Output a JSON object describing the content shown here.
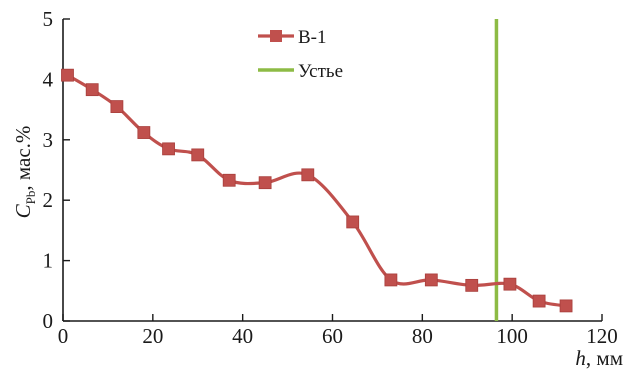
{
  "chart_data": {
    "type": "line",
    "x": [
      1,
      6.5,
      12,
      18,
      23.5,
      30,
      37,
      45,
      54.5,
      64.5,
      73,
      82,
      91,
      99.5,
      106,
      112
    ],
    "series": [
      {
        "name": "В-1",
        "values": [
          4.07,
          3.83,
          3.55,
          3.12,
          2.85,
          2.75,
          2.33,
          2.29,
          2.42,
          1.64,
          0.68,
          0.68,
          0.59,
          0.61,
          0.33,
          0.25
        ],
        "color": "#c0504d",
        "marker": "square"
      }
    ],
    "vertical_lines": [
      {
        "name": "Устье",
        "x": 96.5,
        "color": "#8dbb45"
      }
    ],
    "xlabel": {
      "italic": "h",
      "rest": ", мм"
    },
    "ylabel": {
      "italic": "C",
      "subscript": "Pb",
      "rest": ", мас.%"
    },
    "xlim": [
      0,
      120
    ],
    "ylim": [
      0,
      5
    ],
    "xticks": [
      0,
      20,
      40,
      60,
      80,
      100,
      120
    ],
    "yticks": [
      0,
      1,
      2,
      3,
      4,
      5
    ],
    "grid": false,
    "legend_position": "top-center"
  }
}
